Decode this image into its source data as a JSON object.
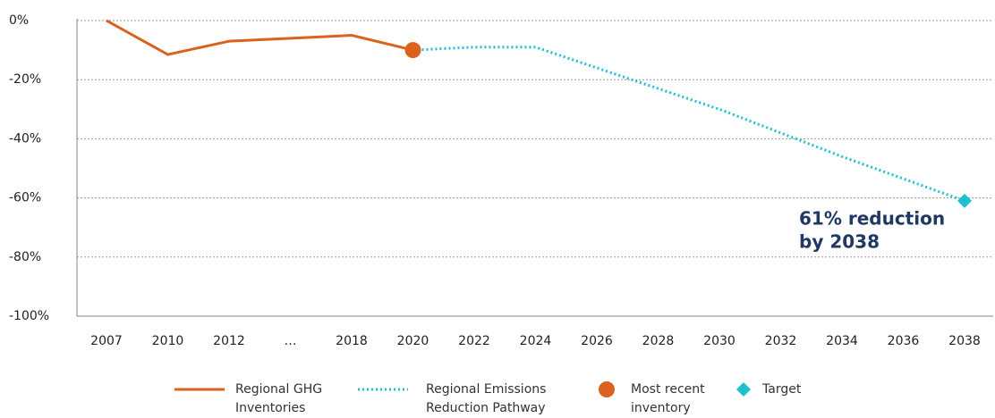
{
  "chart_data": {
    "type": "line",
    "categories": [
      "2007",
      "2010",
      "2012",
      "…",
      "2018",
      "2020",
      "2022",
      "2024",
      "2026",
      "2028",
      "2030",
      "2032",
      "2034",
      "2036",
      "2038"
    ],
    "series": [
      {
        "name": "Regional GHG Inventories",
        "color": "#d9621c",
        "line": "solid",
        "marker": "none",
        "values": [
          0,
          -11.5,
          -7,
          -6,
          -5,
          -10,
          null,
          null,
          null,
          null,
          null,
          null,
          null,
          null,
          null
        ]
      },
      {
        "name": "Regional Emissions Reduction Pathway",
        "color": "#1dbfd0",
        "line": "dotted",
        "marker": "none",
        "values": [
          null,
          null,
          null,
          null,
          null,
          -10,
          -9,
          -9,
          -16,
          -23,
          -30,
          -38,
          -46,
          -53.5,
          -61
        ]
      },
      {
        "name": "Most recent inventory",
        "color": "#d9621c",
        "line": "none",
        "marker": "circle",
        "values": [
          null,
          null,
          null,
          null,
          null,
          -10,
          null,
          null,
          null,
          null,
          null,
          null,
          null,
          null,
          null
        ]
      },
      {
        "name": "Target",
        "color": "#1dbfd0",
        "line": "none",
        "marker": "diamond",
        "values": [
          null,
          null,
          null,
          null,
          null,
          null,
          null,
          null,
          null,
          null,
          null,
          null,
          null,
          null,
          -61
        ]
      }
    ],
    "ylim": [
      -100,
      0
    ],
    "yticks": [
      {
        "value": 0,
        "label": "0%"
      },
      {
        "value": -20,
        "label": "-20%"
      },
      {
        "value": -40,
        "label": "-40%"
      },
      {
        "value": -60,
        "label": "-60%"
      },
      {
        "value": -80,
        "label": "-80%"
      },
      {
        "value": -100,
        "label": "-100%"
      }
    ],
    "grid": true,
    "annotation": {
      "lines": [
        "61% reduction",
        "by 2038"
      ],
      "color": "#1f3864"
    }
  }
}
